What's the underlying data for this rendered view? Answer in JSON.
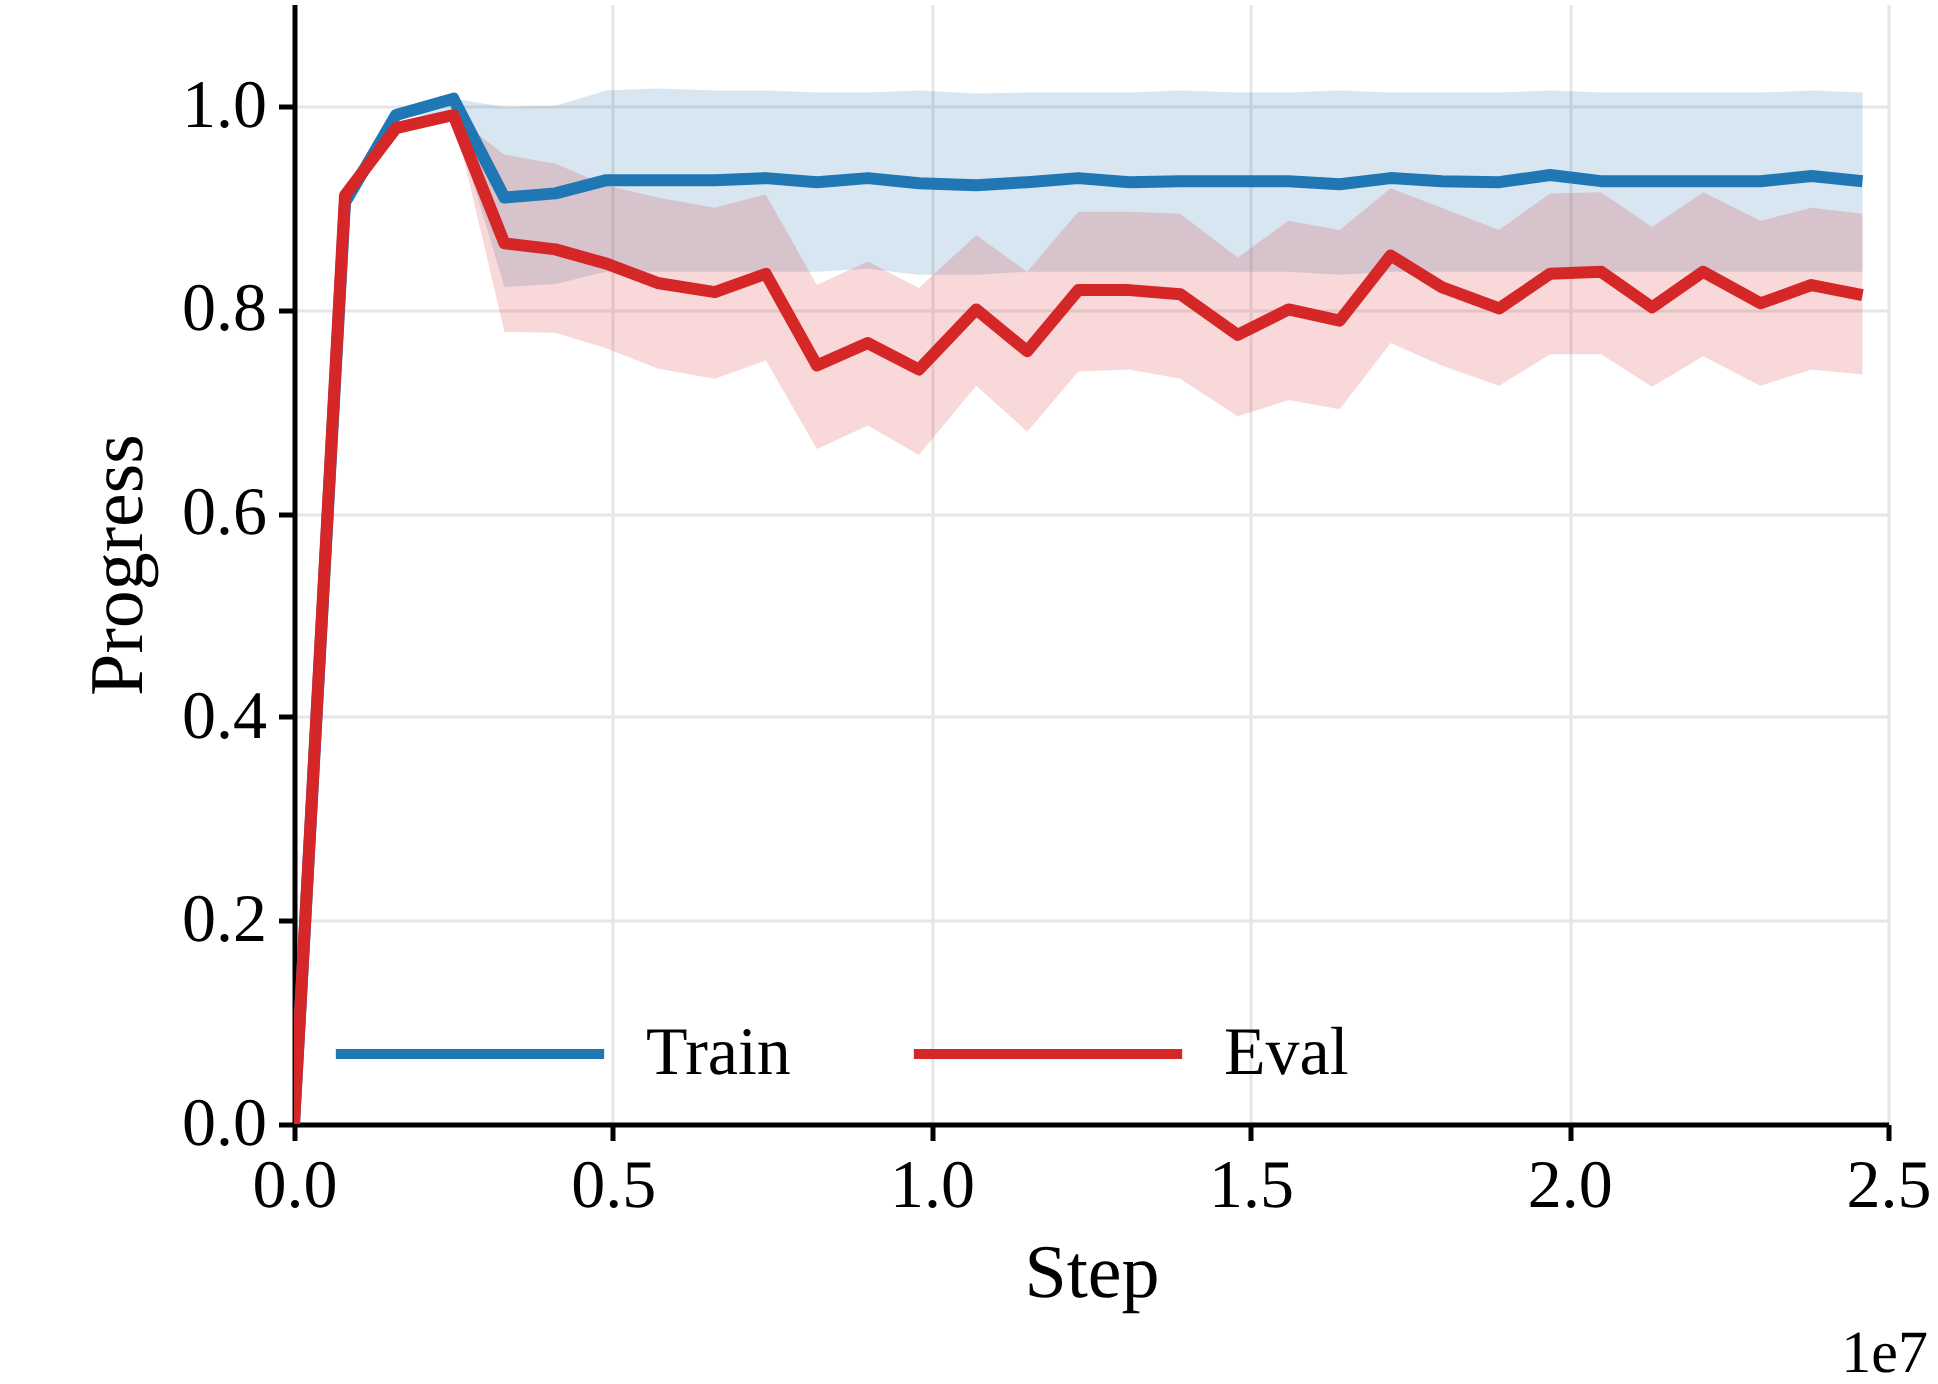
{
  "chart_data": {
    "type": "line",
    "xlabel": "Step",
    "ylabel": "Progress",
    "x": [
      0,
      0.08,
      0.16,
      0.25,
      0.33,
      0.41,
      0.49,
      0.57,
      0.66,
      0.74,
      0.82,
      0.9,
      0.98,
      1.07,
      1.15,
      1.23,
      1.31,
      1.39,
      1.48,
      1.56,
      1.64,
      1.72,
      1.8,
      1.89,
      1.97,
      2.05,
      2.13,
      2.21,
      2.3,
      2.38,
      2.46
    ],
    "series": [
      {
        "name": "Train",
        "color": "#1f77b4",
        "values": [
          0,
          0.905,
          0.991,
          1.007,
          0.91,
          0.914,
          0.927,
          0.927,
          0.927,
          0.929,
          0.925,
          0.929,
          0.924,
          0.922,
          0.925,
          0.929,
          0.925,
          0.926,
          0.926,
          0.926,
          0.923,
          0.929,
          0.926,
          0.925,
          0.932,
          0.926,
          0.926,
          0.926,
          0.926,
          0.931,
          0.926
        ],
        "lower": [
          0,
          0.905,
          0.991,
          0.99,
          0.822,
          0.825,
          0.837,
          0.837,
          0.837,
          0.837,
          0.837,
          0.84,
          0.834,
          0.834,
          0.837,
          0.837,
          0.837,
          0.837,
          0.837,
          0.837,
          0.834,
          0.837,
          0.837,
          0.837,
          0.837,
          0.837,
          0.837,
          0.837,
          0.837,
          0.837,
          0.837
        ],
        "upper": [
          0,
          0.905,
          0.991,
          1.007,
          0.999,
          1.0,
          1.015,
          1.017,
          1.015,
          1.015,
          1.013,
          1.013,
          1.015,
          1.012,
          1.013,
          1.013,
          1.013,
          1.015,
          1.013,
          1.013,
          1.015,
          1.013,
          1.013,
          1.013,
          1.015,
          1.013,
          1.013,
          1.013,
          1.013,
          1.015,
          1.013
        ]
      },
      {
        "name": "Eval",
        "color": "#d62728",
        "values": [
          0,
          0.912,
          0.978,
          0.991,
          0.865,
          0.859,
          0.845,
          0.826,
          0.817,
          0.835,
          0.745,
          0.767,
          0.741,
          0.8,
          0.759,
          0.819,
          0.819,
          0.815,
          0.775,
          0.8,
          0.789,
          0.853,
          0.822,
          0.801,
          0.835,
          0.837,
          0.802,
          0.837,
          0.806,
          0.824,
          0.814
        ],
        "lower": [
          0,
          0.912,
          0.978,
          0.991,
          0.778,
          0.777,
          0.762,
          0.742,
          0.732,
          0.75,
          0.663,
          0.686,
          0.657,
          0.725,
          0.68,
          0.739,
          0.741,
          0.732,
          0.695,
          0.711,
          0.702,
          0.767,
          0.745,
          0.725,
          0.756,
          0.756,
          0.724,
          0.754,
          0.725,
          0.741,
          0.736
        ],
        "upper": [
          0,
          0.912,
          0.978,
          0.991,
          0.952,
          0.943,
          0.922,
          0.91,
          0.9,
          0.913,
          0.824,
          0.847,
          0.821,
          0.873,
          0.837,
          0.896,
          0.896,
          0.894,
          0.851,
          0.887,
          0.878,
          0.919,
          0.9,
          0.878,
          0.914,
          0.915,
          0.881,
          0.915,
          0.887,
          0.9,
          0.894
        ]
      }
    ],
    "xlim": [
      0,
      2.5
    ],
    "xticks": [
      {
        "value": 0,
        "label": "0.0"
      },
      {
        "value": 0.5,
        "label": "0.5"
      },
      {
        "value": 1,
        "label": "1.0"
      },
      {
        "value": 1.5,
        "label": "1.5"
      },
      {
        "value": 2,
        "label": "2.0"
      },
      {
        "value": 2.5,
        "label": "2.5"
      }
    ],
    "ylim": [
      0,
      1.1
    ],
    "yticks": [
      {
        "value": 0,
        "label": "0.0"
      },
      {
        "value": 0.2,
        "label": "0.2"
      },
      {
        "value": 0.4,
        "label": "0.4"
      },
      {
        "value": 0.6,
        "label": "0.6"
      },
      {
        "value": 0.8,
        "label": "0.8"
      },
      {
        "value": 1,
        "label": "1.0"
      }
    ],
    "annotations": [
      "1e7"
    ],
    "grid": true,
    "legend": "bottom left"
  }
}
